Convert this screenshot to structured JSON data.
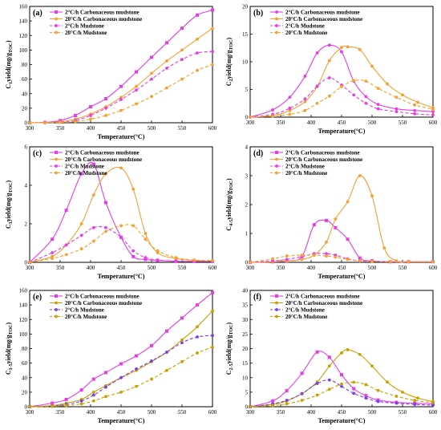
{
  "figure": {
    "x_label": "Temperature(°C)",
    "legend_suffix": {
      "carb": "Carbonaceous mudstone",
      "mud": "Mudstone"
    }
  },
  "chart_data": [
    {
      "panel": "(a)",
      "type": "line",
      "ylabel": "C1yield(mg/gTOC)",
      "ylabel_main": "C",
      "ylabel_sub": "1",
      "ylabel_rest": "yield(mg/g",
      "ylabel_toc": "TOC",
      "xlim": [
        300,
        600
      ],
      "ylim": [
        0,
        160
      ],
      "xticks": [
        300,
        350,
        400,
        450,
        500,
        550,
        600
      ],
      "yticks": [
        0,
        20,
        40,
        60,
        80,
        100,
        120,
        140,
        160
      ],
      "legend_position": "top-left",
      "series": [
        {
          "name": "2°C/h Carbonaceous mudstone",
          "color": "#e63ce6",
          "dashed": false,
          "marker": "square",
          "x": [
            300,
            325,
            350,
            375,
            400,
            425,
            450,
            475,
            500,
            525,
            550,
            575,
            600
          ],
          "y": [
            0,
            0.5,
            3,
            10,
            22,
            33,
            50,
            70,
            90,
            110,
            130,
            148,
            155
          ]
        },
        {
          "name": "20°C/h Carbonaceous mudstone",
          "color": "#f5a030",
          "dashed": false,
          "marker": "circle",
          "x": [
            300,
            325,
            350,
            375,
            400,
            425,
            450,
            475,
            500,
            525,
            550,
            575,
            600
          ],
          "y": [
            0,
            0.3,
            1.5,
            5,
            12,
            22,
            35,
            50,
            68,
            85,
            100,
            115,
            130
          ]
        },
        {
          "name": "2°C/h Mudstone",
          "color": "#e63ce6",
          "dashed": true,
          "marker": "circle",
          "x": [
            300,
            325,
            350,
            375,
            400,
            425,
            450,
            475,
            500,
            525,
            550,
            575,
            600
          ],
          "y": [
            0,
            0.3,
            1,
            3,
            10,
            20,
            32,
            45,
            60,
            75,
            87,
            96,
            98
          ]
        },
        {
          "name": "20°C/h Mudstone",
          "color": "#f5a030",
          "dashed": true,
          "marker": "circle",
          "x": [
            300,
            325,
            350,
            375,
            400,
            425,
            450,
            475,
            500,
            525,
            550,
            575,
            600
          ],
          "y": [
            0,
            0.2,
            0.5,
            1.5,
            5,
            10,
            17,
            26,
            36,
            48,
            60,
            72,
            80
          ]
        }
      ]
    },
    {
      "panel": "(b)",
      "type": "line",
      "ylabel": "C2yield(mg/gTOC)",
      "ylabel_main": "C",
      "ylabel_sub": "2",
      "ylabel_rest": "yield(mg/g",
      "ylabel_toc": "TOC",
      "xlim": [
        300,
        600
      ],
      "ylim": [
        0,
        20
      ],
      "xticks": [
        300,
        350,
        400,
        450,
        500,
        550,
        600
      ],
      "yticks": [
        0,
        5,
        10,
        15,
        20
      ],
      "legend_position": "top-left",
      "series": [
        {
          "name": "2°C/h Carbonaceous mudstone",
          "color": "#e63ce6",
          "dashed": false,
          "marker": "circle",
          "x": [
            300,
            337,
            365,
            390,
            410,
            430,
            450,
            470,
            490,
            510,
            540,
            570,
            600
          ],
          "y": [
            0,
            1.3,
            3.6,
            7.4,
            11.6,
            13,
            11.8,
            6.5,
            3.7,
            2.3,
            1.5,
            1.2,
            1.0
          ]
        },
        {
          "name": "20°C/h Carbonaceous mudstone",
          "color": "#f5a030",
          "dashed": false,
          "marker": "circle",
          "x": [
            300,
            337,
            365,
            390,
            410,
            430,
            450,
            460,
            480,
            500,
            525,
            550,
            575,
            600
          ],
          "y": [
            0,
            0.3,
            1.2,
            2.8,
            5.5,
            10.2,
            12.6,
            12.7,
            12.2,
            9.2,
            6,
            4,
            2.7,
            1.7
          ]
        },
        {
          "name": "2°C/h Mudstone",
          "color": "#e63ce6",
          "dashed": true,
          "marker": "circle",
          "x": [
            300,
            337,
            365,
            390,
            410,
            430,
            450,
            470,
            490,
            510,
            540,
            570,
            600
          ],
          "y": [
            0,
            0.5,
            1.6,
            3.3,
            5.6,
            7.1,
            5.8,
            4.0,
            2.5,
            1.5,
            1.0,
            0.6,
            0.4
          ]
        },
        {
          "name": "20°C/h Mudstone",
          "color": "#f5a030",
          "dashed": true,
          "marker": "circle",
          "x": [
            300,
            337,
            365,
            390,
            410,
            430,
            450,
            470,
            490,
            510,
            540,
            570,
            600
          ],
          "y": [
            0,
            0.2,
            0.5,
            1.2,
            2.5,
            3.8,
            5.5,
            6.6,
            6.5,
            5.2,
            3.6,
            2.2,
            1.4
          ]
        }
      ]
    },
    {
      "panel": "(c)",
      "type": "line",
      "ylabel": "C3yield(mg/gTOC)",
      "ylabel_main": "C",
      "ylabel_sub": "3",
      "ylabel_rest": "yield(mg/g",
      "ylabel_toc": "TOC",
      "xlim": [
        300,
        600
      ],
      "ylim": [
        0,
        6
      ],
      "xticks": [
        300,
        350,
        400,
        450,
        500,
        550,
        600
      ],
      "yticks": [
        0,
        2,
        4,
        6
      ],
      "legend_position": "top-left",
      "series": [
        {
          "name": "2°C/h Carbonaceous mudstone",
          "color": "#e63ce6",
          "dashed": false,
          "marker": "square",
          "x": [
            300,
            337,
            360,
            385,
            405,
            425,
            450,
            470,
            490,
            510,
            540,
            570,
            600
          ],
          "y": [
            0,
            1.2,
            2.7,
            4.6,
            5.1,
            3.1,
            1.3,
            0.3,
            0.15,
            0.1,
            0.05,
            0.05,
            0.05
          ]
        },
        {
          "name": "20°C/h Carbonaceous mudstone",
          "color": "#f5a030",
          "dashed": false,
          "marker": "circle",
          "x": [
            300,
            337,
            360,
            385,
            405,
            425,
            450,
            470,
            490,
            510,
            540,
            570,
            600
          ],
          "y": [
            0,
            0.3,
            0.9,
            2.0,
            3.5,
            4.6,
            4.9,
            3.8,
            1.5,
            0.5,
            0.2,
            0.1,
            0.05
          ]
        },
        {
          "name": "2°C/h Mudstone",
          "color": "#e63ce6",
          "dashed": true,
          "marker": "circle",
          "x": [
            300,
            337,
            360,
            385,
            405,
            425,
            450,
            470,
            490,
            510,
            540,
            570,
            600
          ],
          "y": [
            0,
            0.5,
            0.9,
            1.4,
            1.8,
            1.8,
            1.3,
            0.6,
            0.25,
            0.12,
            0.06,
            0.05,
            0.05
          ]
        },
        {
          "name": "20°C/h Mudstone",
          "color": "#f5a030",
          "dashed": true,
          "marker": "circle",
          "x": [
            300,
            337,
            360,
            385,
            405,
            425,
            450,
            470,
            490,
            510,
            540,
            570,
            600
          ],
          "y": [
            0,
            0.2,
            0.4,
            0.7,
            1.1,
            1.6,
            1.9,
            1.9,
            1.2,
            0.6,
            0.25,
            0.12,
            0.1
          ]
        }
      ]
    },
    {
      "panel": "(d)",
      "type": "line",
      "ylabel": "C4-5yield(mg/gTOC)",
      "ylabel_main": "C",
      "ylabel_sub": "4-5",
      "ylabel_rest": "yield(mg/g",
      "ylabel_toc": "TOC",
      "xlim": [
        300,
        600
      ],
      "ylim": [
        0,
        4
      ],
      "xticks": [
        300,
        350,
        400,
        450,
        500,
        550,
        600
      ],
      "yticks": [
        0,
        1,
        2,
        3,
        4
      ],
      "legend_position": "top-left",
      "series": [
        {
          "name": "2°C/h Carbonaceous mudstone",
          "color": "#e63ce6",
          "dashed": false,
          "marker": "square",
          "x": [
            300,
            337,
            360,
            385,
            405,
            425,
            440,
            460,
            480,
            500,
            530,
            560,
            600
          ],
          "y": [
            0,
            0.02,
            0.05,
            0.2,
            1.3,
            1.45,
            1.2,
            0.8,
            0.15,
            0.05,
            0.02,
            0.02,
            0.02
          ]
        },
        {
          "name": "20°C/h Carbonaceous mudstone",
          "color": "#f5a030",
          "dashed": false,
          "marker": "circle",
          "x": [
            300,
            337,
            360,
            385,
            405,
            425,
            440,
            460,
            480,
            500,
            520,
            540,
            560,
            600
          ],
          "y": [
            0,
            0.02,
            0.05,
            0.1,
            0.25,
            0.7,
            1.5,
            2.1,
            3.0,
            2.3,
            0.5,
            0.05,
            0.02,
            0.02
          ]
        },
        {
          "name": "2°C/h Mudstone",
          "color": "#e63ce6",
          "dashed": true,
          "marker": "circle",
          "x": [
            300,
            337,
            360,
            385,
            405,
            425,
            440,
            460,
            480,
            500,
            530,
            560,
            600
          ],
          "y": [
            0,
            0.05,
            0.1,
            0.2,
            0.3,
            0.3,
            0.25,
            0.12,
            0.05,
            0.03,
            0.02,
            0.02,
            0.02
          ]
        },
        {
          "name": "20°C/h Mudstone",
          "color": "#f5a030",
          "dashed": true,
          "marker": "circle",
          "x": [
            300,
            337,
            360,
            385,
            405,
            425,
            440,
            460,
            480,
            500,
            530,
            560,
            600
          ],
          "y": [
            0,
            0.12,
            0.22,
            0.25,
            0.25,
            0.22,
            0.18,
            0.1,
            0.05,
            0.03,
            0.02,
            0.02,
            0.02
          ]
        }
      ]
    },
    {
      "panel": "(e)",
      "type": "line",
      "ylabel": "C1-5yield(mg/gTOC)",
      "ylabel_main": "C",
      "ylabel_sub": "1-5",
      "ylabel_rest": "yield(mg/g",
      "ylabel_toc": "TOC",
      "xlim": [
        300,
        600
      ],
      "ylim": [
        0,
        160
      ],
      "xticks": [
        300,
        350,
        400,
        450,
        500,
        550,
        600
      ],
      "yticks": [
        0,
        20,
        40,
        60,
        80,
        100,
        120,
        140,
        160
      ],
      "legend_position": "top-left",
      "series": [
        {
          "name": "2°C/h Carbonaceous mudstone",
          "color": "#e63ce6",
          "dashed": false,
          "marker": "square",
          "x": [
            300,
            337,
            360,
            385,
            405,
            425,
            450,
            475,
            500,
            525,
            550,
            575,
            600
          ],
          "y": [
            0,
            5,
            10,
            23,
            38,
            47,
            59,
            70,
            84,
            104,
            122,
            140,
            157
          ]
        },
        {
          "name": "20°C/h Carbonaceous mudstone",
          "color": "#c8a000",
          "dashed": false,
          "marker": "circle",
          "x": [
            300,
            337,
            360,
            385,
            405,
            425,
            450,
            475,
            500,
            525,
            550,
            575,
            600
          ],
          "y": [
            0,
            1.5,
            5,
            10,
            20,
            29,
            40,
            50,
            62,
            75,
            92,
            110,
            132
          ]
        },
        {
          "name": "2°C/h Mudstone",
          "color": "#7b3fe4",
          "dashed": true,
          "marker": "circle",
          "x": [
            300,
            337,
            360,
            385,
            405,
            425,
            450,
            475,
            500,
            525,
            550,
            575,
            600
          ],
          "y": [
            0,
            1,
            3,
            8,
            16,
            27,
            40,
            52,
            63,
            75,
            88,
            96,
            98
          ]
        },
        {
          "name": "20°C/h Mudstone",
          "color": "#c8a000",
          "dashed": true,
          "marker": "circle",
          "x": [
            300,
            337,
            360,
            385,
            405,
            425,
            450,
            475,
            500,
            525,
            550,
            575,
            600
          ],
          "y": [
            0,
            0.5,
            1.5,
            4,
            8,
            14,
            20,
            28,
            38,
            50,
            62,
            74,
            82
          ]
        }
      ]
    },
    {
      "panel": "(f)",
      "type": "line",
      "ylabel": "C2-5yield(mg/gTOC)",
      "ylabel_main": "C",
      "ylabel_sub": "2-5",
      "ylabel_rest": "yield(mg/g",
      "ylabel_toc": "TOC",
      "xlim": [
        300,
        600
      ],
      "ylim": [
        0,
        40
      ],
      "xticks": [
        300,
        350,
        400,
        450,
        500,
        550,
        600
      ],
      "yticks": [
        0,
        5,
        10,
        15,
        20,
        25,
        30,
        35,
        40
      ],
      "legend_position": "top-left",
      "series": [
        {
          "name": "2°C/h Carbonaceous mudstone",
          "color": "#e63ce6",
          "dashed": false,
          "marker": "square",
          "x": [
            300,
            337,
            360,
            385,
            410,
            430,
            450,
            470,
            490,
            510,
            540,
            570,
            600
          ],
          "y": [
            0,
            2,
            5.5,
            11.5,
            18.8,
            17,
            11,
            6.2,
            3.8,
            2.3,
            1.5,
            1.2,
            1.0
          ]
        },
        {
          "name": "20°C/h Carbonaceous mudstone",
          "color": "#c8a000",
          "dashed": false,
          "marker": "circle",
          "x": [
            300,
            337,
            360,
            385,
            410,
            430,
            450,
            460,
            480,
            500,
            525,
            550,
            575,
            600
          ],
          "y": [
            0,
            0.8,
            2,
            4.5,
            8.5,
            14,
            18.5,
            19.6,
            18,
            14,
            8.5,
            5,
            3,
            1.8
          ]
        },
        {
          "name": "2°C/h Mudstone",
          "color": "#7b3fe4",
          "dashed": true,
          "marker": "circle",
          "x": [
            300,
            337,
            360,
            385,
            410,
            430,
            450,
            470,
            490,
            510,
            540,
            570,
            600
          ],
          "y": [
            0,
            1,
            2.2,
            4.5,
            8,
            9.2,
            7,
            4.6,
            3.0,
            1.8,
            1.2,
            0.8,
            0.5
          ]
        },
        {
          "name": "20°C/h Mudstone",
          "color": "#c8a000",
          "dashed": true,
          "marker": "circle",
          "x": [
            300,
            337,
            360,
            385,
            410,
            430,
            450,
            470,
            490,
            510,
            540,
            570,
            600
          ],
          "y": [
            0,
            0.4,
            1.0,
            2.2,
            4,
            6,
            7.8,
            8.4,
            7.6,
            5.6,
            3.6,
            2.2,
            1.4
          ]
        }
      ]
    }
  ]
}
